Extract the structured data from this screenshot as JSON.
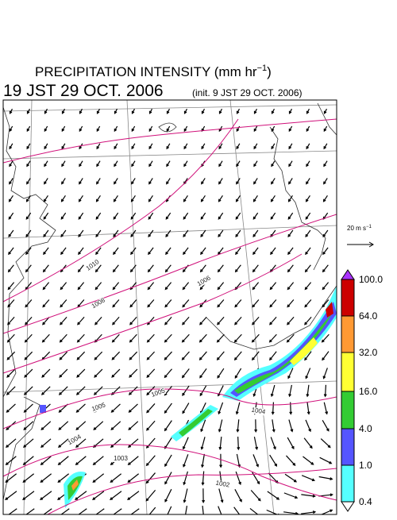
{
  "header": {
    "title_main": "PRECIPITATION INTENSITY (mm hr",
    "title_sup": "−1",
    "title_end": ")",
    "valid_time": "19 JST 29 OCT. 2006",
    "init_time": "(init. 9 JST 29 OCT. 2006)"
  },
  "scale_arrow": {
    "label_main": "20 m s",
    "label_sup": "−1"
  },
  "colorbar": {
    "labels": [
      "100.0",
      "64.0",
      "32.0",
      "16.0",
      "4.0",
      "1.0",
      "0.4"
    ],
    "colors": [
      "#cc0000",
      "#ff9933",
      "#ffff33",
      "#33cc33",
      "#5555ff",
      "#55ffff"
    ],
    "over_color": "#aa33ff",
    "under_color": "#ffffff"
  },
  "isobar_labels": [
    "1010",
    "1008",
    "1006",
    "1005",
    "1005",
    "1004",
    "1004",
    "1003",
    "1002"
  ]
}
